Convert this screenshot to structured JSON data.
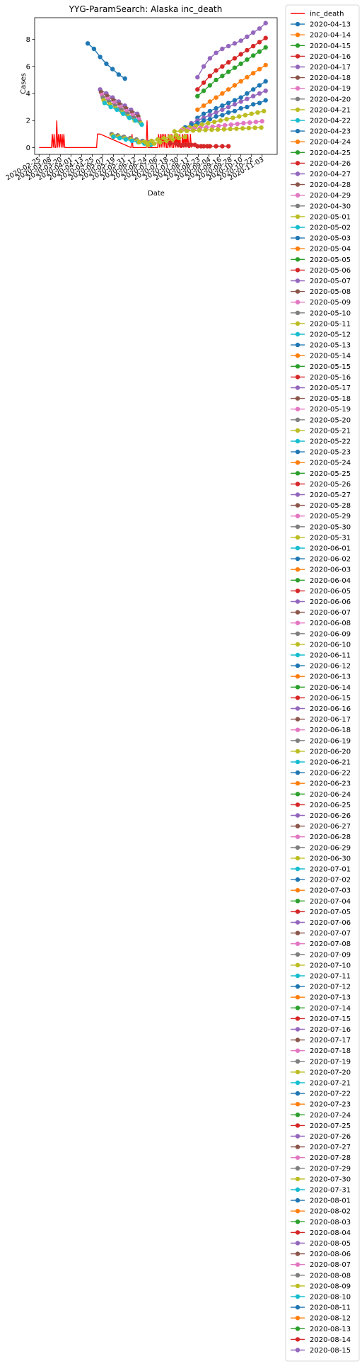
{
  "chart_data": {
    "type": "line",
    "title": "YYG-ParamSearch: Alaska inc_death",
    "xlabel": "Date",
    "ylabel": "Cases",
    "xlim": [
      "2020-02-20",
      "2020-11-20"
    ],
    "ylim": [
      -0.5,
      9.6
    ],
    "y_ticks": [
      0,
      2,
      4,
      6,
      8
    ],
    "x_ticks": [
      "2020-02-25",
      "2020-03-08",
      "2020-03-20",
      "2020-04-01",
      "2020-04-13",
      "2020-04-25",
      "2020-05-07",
      "2020-05-19",
      "2020-05-31",
      "2020-06-12",
      "2020-06-24",
      "2020-07-06",
      "2020-07-18",
      "2020-07-30",
      "2020-08-11",
      "2020-08-23",
      "2020-09-04",
      "2020-09-16",
      "2020-09-28",
      "2020-10-10",
      "2020-10-22",
      "2020-11-03"
    ],
    "grid": false,
    "legend": "outside-right",
    "observed": {
      "name": "inc_death",
      "color": "#ff0000",
      "x": [
        "2020-02-25",
        "2020-03-10",
        "2020-03-11",
        "2020-03-12",
        "2020-03-13",
        "2020-03-14",
        "2020-03-15",
        "2020-03-16",
        "2020-03-17",
        "2020-03-18",
        "2020-03-19",
        "2020-03-20",
        "2020-03-21",
        "2020-03-22",
        "2020-03-23",
        "2020-03-24",
        "2020-03-25",
        "2020-03-26",
        "2020-03-27",
        "2020-03-28",
        "2020-03-29",
        "2020-03-30",
        "2020-03-31",
        "2020-04-01",
        "2020-04-02",
        "2020-04-03",
        "2020-04-04",
        "2020-04-05",
        "2020-04-06",
        "2020-04-07",
        "2020-04-30",
        "2020-05-01",
        "2020-05-02",
        "2020-05-03",
        "2020-05-04",
        "2020-06-08",
        "2020-06-09",
        "2020-06-10",
        "2020-06-25",
        "2020-06-26",
        "2020-06-27",
        "2020-06-28",
        "2020-07-08",
        "2020-07-09",
        "2020-07-10",
        "2020-07-11",
        "2020-07-12",
        "2020-07-13",
        "2020-07-14",
        "2020-07-15",
        "2020-07-16",
        "2020-07-17",
        "2020-07-18",
        "2020-07-19",
        "2020-07-20",
        "2020-07-21",
        "2020-07-22",
        "2020-07-23",
        "2020-07-24",
        "2020-07-25",
        "2020-07-26",
        "2020-07-27",
        "2020-07-28",
        "2020-07-29",
        "2020-07-30",
        "2020-07-31",
        "2020-08-01",
        "2020-08-02",
        "2020-08-03",
        "2020-08-04",
        "2020-08-05",
        "2020-08-06",
        "2020-08-07",
        "2020-08-08",
        "2020-08-09",
        "2020-08-10",
        "2020-08-11",
        "2020-08-12",
        "2020-08-13",
        "2020-08-14",
        "2020-08-15"
      ],
      "y": [
        0,
        0,
        1,
        0,
        1,
        0,
        0,
        2,
        0,
        1,
        0,
        1,
        0,
        1,
        0,
        1,
        0,
        0,
        0,
        0,
        0,
        0,
        0,
        0,
        0,
        0,
        0,
        0,
        0,
        0,
        0,
        1,
        1,
        1,
        1,
        0,
        1,
        0,
        0,
        2,
        0,
        0,
        0,
        1,
        0,
        1,
        0,
        1,
        0,
        1,
        0,
        1,
        0,
        0,
        1,
        0,
        1,
        0,
        1,
        0,
        0,
        1,
        0,
        1,
        0,
        1,
        0,
        1,
        0,
        0,
        1,
        0,
        1,
        0,
        1,
        0,
        1,
        0,
        0,
        1,
        0
      ]
    },
    "series_names": [
      "2020-04-13",
      "2020-04-14",
      "2020-04-15",
      "2020-04-16",
      "2020-04-17",
      "2020-04-18",
      "2020-04-19",
      "2020-04-20",
      "2020-04-21",
      "2020-04-22",
      "2020-04-23",
      "2020-04-24",
      "2020-04-25",
      "2020-04-26",
      "2020-04-27",
      "2020-04-28",
      "2020-04-29",
      "2020-04-30",
      "2020-05-01",
      "2020-05-02",
      "2020-05-03",
      "2020-05-04",
      "2020-05-05",
      "2020-05-06",
      "2020-05-07",
      "2020-05-08",
      "2020-05-09",
      "2020-05-10",
      "2020-05-11",
      "2020-05-12",
      "2020-05-13",
      "2020-05-14",
      "2020-05-15",
      "2020-05-16",
      "2020-05-17",
      "2020-05-18",
      "2020-05-19",
      "2020-05-20",
      "2020-05-21",
      "2020-05-22",
      "2020-05-23",
      "2020-05-24",
      "2020-05-25",
      "2020-05-26",
      "2020-05-27",
      "2020-05-28",
      "2020-05-29",
      "2020-05-30",
      "2020-05-31",
      "2020-06-01",
      "2020-06-02",
      "2020-06-03",
      "2020-06-04",
      "2020-06-05",
      "2020-06-06",
      "2020-06-07",
      "2020-06-08",
      "2020-06-09",
      "2020-06-10",
      "2020-06-11",
      "2020-06-12",
      "2020-06-13",
      "2020-06-14",
      "2020-06-15",
      "2020-06-16",
      "2020-06-17",
      "2020-06-18",
      "2020-06-19",
      "2020-06-20",
      "2020-06-21",
      "2020-06-22",
      "2020-06-23",
      "2020-06-24",
      "2020-06-25",
      "2020-06-26",
      "2020-06-27",
      "2020-06-28",
      "2020-06-29",
      "2020-06-30",
      "2020-07-01",
      "2020-07-02",
      "2020-07-03",
      "2020-07-04",
      "2020-07-05",
      "2020-07-06",
      "2020-07-07",
      "2020-07-08",
      "2020-07-09",
      "2020-07-10",
      "2020-07-11",
      "2020-07-12",
      "2020-07-13",
      "2020-07-14",
      "2020-07-15",
      "2020-07-16",
      "2020-07-17",
      "2020-07-18",
      "2020-07-19",
      "2020-07-20",
      "2020-07-21",
      "2020-07-22",
      "2020-07-23",
      "2020-07-24",
      "2020-07-25",
      "2020-07-26",
      "2020-07-27",
      "2020-07-28",
      "2020-07-29",
      "2020-07-30",
      "2020-07-31",
      "2020-08-01",
      "2020-08-02",
      "2020-08-03",
      "2020-08-04",
      "2020-08-05",
      "2020-08-06",
      "2020-08-07",
      "2020-08-08",
      "2020-08-09",
      "2020-08-10",
      "2020-08-11",
      "2020-08-12",
      "2020-08-13",
      "2020-08-14",
      "2020-08-15"
    ],
    "series_colors": [
      "#1f77b4",
      "#ff7f0e",
      "#2ca02c",
      "#d62728",
      "#9467bd",
      "#8c564b",
      "#e377c2",
      "#7f7f7f",
      "#bcbd22",
      "#17becf"
    ],
    "series": [
      {
        "name": "2020-04-13",
        "x": [
          "2020-04-20",
          "2020-04-27",
          "2020-05-04",
          "2020-05-11",
          "2020-05-18",
          "2020-05-25",
          "2020-06-01"
        ],
        "y": [
          7.7,
          7.3,
          6.7,
          6.2,
          5.8,
          5.4,
          5.1
        ]
      },
      {
        "name": "2020-04-27",
        "x": [
          "2020-05-04",
          "2020-05-11",
          "2020-05-18",
          "2020-05-25",
          "2020-06-01",
          "2020-06-08",
          "2020-06-15"
        ],
        "y": [
          4.3,
          4.0,
          3.7,
          3.4,
          3.1,
          2.8,
          2.5
        ]
      },
      {
        "name": "2020-04-28",
        "x": [
          "2020-05-05",
          "2020-05-12",
          "2020-05-19",
          "2020-05-26",
          "2020-06-02",
          "2020-06-09",
          "2020-06-16"
        ],
        "y": [
          4.1,
          3.8,
          3.5,
          3.2,
          2.9,
          2.6,
          2.3
        ]
      },
      {
        "name": "2020-04-29",
        "x": [
          "2020-05-06",
          "2020-05-13",
          "2020-05-20",
          "2020-05-27",
          "2020-06-03",
          "2020-06-10",
          "2020-06-17"
        ],
        "y": [
          3.9,
          3.6,
          3.3,
          3.0,
          2.7,
          2.4,
          2.1
        ]
      },
      {
        "name": "2020-04-30",
        "x": [
          "2020-05-07",
          "2020-05-14",
          "2020-05-21",
          "2020-05-28",
          "2020-06-04",
          "2020-06-11",
          "2020-06-18"
        ],
        "y": [
          3.7,
          3.4,
          3.1,
          2.8,
          2.5,
          2.2,
          1.9
        ]
      },
      {
        "name": "2020-05-01",
        "x": [
          "2020-05-08",
          "2020-05-15",
          "2020-05-22",
          "2020-05-29",
          "2020-06-05",
          "2020-06-12",
          "2020-06-19"
        ],
        "y": [
          3.5,
          3.2,
          2.9,
          2.6,
          2.3,
          2.0,
          1.8
        ]
      },
      {
        "name": "2020-05-02",
        "x": [
          "2020-05-09",
          "2020-05-16",
          "2020-05-23",
          "2020-05-30",
          "2020-06-06",
          "2020-06-13",
          "2020-06-20"
        ],
        "y": [
          3.3,
          3.0,
          2.8,
          2.5,
          2.2,
          2.0,
          1.7
        ]
      },
      {
        "name": "2020-05-10",
        "x": [
          "2020-05-17",
          "2020-05-24",
          "2020-05-31",
          "2020-06-07",
          "2020-06-14",
          "2020-06-21",
          "2020-06-28"
        ],
        "y": [
          1.0,
          0.9,
          0.8,
          0.7,
          0.6,
          0.5,
          0.4
        ]
      },
      {
        "name": "2020-05-11",
        "x": [
          "2020-05-18",
          "2020-05-25",
          "2020-06-01",
          "2020-06-08",
          "2020-06-15",
          "2020-06-22",
          "2020-06-29"
        ],
        "y": [
          0.9,
          0.8,
          0.7,
          0.6,
          0.5,
          0.4,
          0.3
        ]
      },
      {
        "name": "2020-05-12",
        "x": [
          "2020-05-19",
          "2020-05-26",
          "2020-06-02",
          "2020-06-09",
          "2020-06-16",
          "2020-06-23",
          "2020-06-30"
        ],
        "y": [
          0.8,
          0.7,
          0.6,
          0.5,
          0.4,
          0.3,
          0.2
        ]
      },
      {
        "name": "2020-06-10",
        "x": [
          "2020-06-17",
          "2020-06-24",
          "2020-07-01",
          "2020-07-08",
          "2020-07-15",
          "2020-07-22",
          "2020-07-29"
        ],
        "y": [
          0.4,
          0.4,
          0.5,
          0.6,
          0.7,
          0.8,
          0.9
        ]
      },
      {
        "name": "2020-06-20",
        "x": [
          "2020-06-27",
          "2020-07-04",
          "2020-07-11",
          "2020-07-18",
          "2020-07-25",
          "2020-08-01",
          "2020-08-08"
        ],
        "y": [
          0.2,
          0.3,
          0.4,
          0.5,
          0.6,
          0.7,
          0.8
        ]
      },
      {
        "name": "2020-07-15",
        "x": [
          "2020-07-22",
          "2020-07-29",
          "2020-08-05",
          "2020-08-12",
          "2020-08-19",
          "2020-08-26",
          "2020-09-02"
        ],
        "y": [
          0.3,
          0.3,
          0.2,
          0.2,
          0.2,
          0.1,
          0.1
        ]
      },
      {
        "name": "2020-07-25",
        "x": [
          "2020-08-01",
          "2020-08-08",
          "2020-08-15",
          "2020-08-22",
          "2020-08-29",
          "2020-09-05",
          "2020-09-12",
          "2020-09-19",
          "2020-09-26"
        ],
        "y": [
          0.2,
          0.2,
          0.2,
          0.1,
          0.1,
          0.1,
          0.1,
          0.1,
          0.1
        ]
      },
      {
        "name": "2020-08-15",
        "x": [
          "2020-08-22",
          "2020-08-29",
          "2020-09-05",
          "2020-09-12",
          "2020-09-19",
          "2020-09-26",
          "2020-10-03",
          "2020-10-10",
          "2020-10-17",
          "2020-10-24",
          "2020-10-31",
          "2020-11-07"
        ],
        "y": [
          5.2,
          6.0,
          6.6,
          7.0,
          7.3,
          7.5,
          7.7,
          7.9,
          8.2,
          8.5,
          8.8,
          9.2
        ]
      },
      {
        "name": "2020-08-14",
        "x": [
          "2020-08-22",
          "2020-08-29",
          "2020-09-05",
          "2020-09-12",
          "2020-09-19",
          "2020-09-26",
          "2020-10-03",
          "2020-10-10",
          "2020-10-17",
          "2020-10-24",
          "2020-10-31",
          "2020-11-07"
        ],
        "y": [
          4.3,
          4.8,
          5.3,
          5.7,
          6.0,
          6.3,
          6.6,
          6.9,
          7.2,
          7.5,
          7.8,
          8.1
        ]
      },
      {
        "name": "2020-08-13",
        "x": [
          "2020-08-22",
          "2020-08-29",
          "2020-09-05",
          "2020-09-12",
          "2020-09-19",
          "2020-09-26",
          "2020-10-03",
          "2020-10-10",
          "2020-10-17",
          "2020-10-24",
          "2020-10-31",
          "2020-11-07"
        ],
        "y": [
          3.8,
          4.2,
          4.6,
          5.0,
          5.3,
          5.6,
          5.9,
          6.2,
          6.5,
          6.8,
          7.1,
          7.4
        ]
      },
      {
        "name": "2020-08-12",
        "x": [
          "2020-08-22",
          "2020-08-29",
          "2020-09-05",
          "2020-09-12",
          "2020-09-19",
          "2020-09-26",
          "2020-10-03",
          "2020-10-10",
          "2020-10-17",
          "2020-10-24",
          "2020-10-31",
          "2020-11-07"
        ],
        "y": [
          2.8,
          3.1,
          3.4,
          3.7,
          4.0,
          4.3,
          4.6,
          4.9,
          5.2,
          5.5,
          5.8,
          6.1
        ]
      },
      {
        "name": "2020-08-11",
        "x": [
          "2020-08-22",
          "2020-08-29",
          "2020-09-05",
          "2020-09-12",
          "2020-09-19",
          "2020-09-26",
          "2020-10-03",
          "2020-10-10",
          "2020-10-17",
          "2020-10-24",
          "2020-10-31",
          "2020-11-07"
        ],
        "y": [
          2.2,
          2.5,
          2.7,
          2.9,
          3.1,
          3.3,
          3.5,
          3.7,
          4.0,
          4.3,
          4.6,
          4.9
        ]
      },
      {
        "name": "2020-08-05",
        "x": [
          "2020-08-15",
          "2020-08-22",
          "2020-08-29",
          "2020-09-05",
          "2020-09-12",
          "2020-09-19",
          "2020-09-26",
          "2020-10-03",
          "2020-10-10",
          "2020-10-17",
          "2020-10-24",
          "2020-10-31",
          "2020-11-07"
        ],
        "y": [
          1.8,
          2.0,
          2.2,
          2.4,
          2.6,
          2.8,
          3.0,
          3.2,
          3.4,
          3.6,
          3.8,
          4.0,
          4.2
        ]
      },
      {
        "name": "2020-08-01",
        "x": [
          "2020-08-08",
          "2020-08-15",
          "2020-08-22",
          "2020-08-29",
          "2020-09-05",
          "2020-09-12",
          "2020-09-19",
          "2020-09-26",
          "2020-10-03",
          "2020-10-10",
          "2020-10-17",
          "2020-10-24",
          "2020-10-31",
          "2020-11-07"
        ],
        "y": [
          1.5,
          1.7,
          1.8,
          2.0,
          2.1,
          2.3,
          2.4,
          2.6,
          2.7,
          2.9,
          3.0,
          3.2,
          3.3,
          3.5
        ]
      },
      {
        "name": "2020-07-30",
        "x": [
          "2020-08-06",
          "2020-08-13",
          "2020-08-20",
          "2020-08-27",
          "2020-09-03",
          "2020-09-10",
          "2020-09-17",
          "2020-09-24",
          "2020-10-01",
          "2020-10-08",
          "2020-10-15",
          "2020-10-22",
          "2020-10-29",
          "2020-11-05"
        ],
        "y": [
          1.4,
          1.5,
          1.6,
          1.7,
          1.8,
          1.9,
          2.0,
          2.1,
          2.2,
          2.3,
          2.4,
          2.5,
          2.6,
          2.7
        ]
      },
      {
        "name": "2020-07-28",
        "x": [
          "2020-08-04",
          "2020-08-11",
          "2020-08-18",
          "2020-08-25",
          "2020-09-01",
          "2020-09-08",
          "2020-09-15",
          "2020-09-22",
          "2020-09-29",
          "2020-10-06",
          "2020-10-13",
          "2020-10-20",
          "2020-10-27",
          "2020-11-03"
        ],
        "y": [
          1.3,
          1.35,
          1.4,
          1.45,
          1.5,
          1.55,
          1.6,
          1.65,
          1.7,
          1.75,
          1.8,
          1.85,
          1.9,
          1.95
        ]
      },
      {
        "name": "2020-07-20",
        "x": [
          "2020-07-27",
          "2020-08-03",
          "2020-08-10",
          "2020-08-17",
          "2020-08-24",
          "2020-08-31",
          "2020-09-07",
          "2020-09-14",
          "2020-09-21",
          "2020-09-28",
          "2020-10-05",
          "2020-10-12",
          "2020-10-19",
          "2020-10-26",
          "2020-11-02"
        ],
        "y": [
          1.2,
          1.22,
          1.24,
          1.26,
          1.28,
          1.3,
          1.32,
          1.34,
          1.36,
          1.38,
          1.4,
          1.42,
          1.44,
          1.46,
          1.48
        ]
      }
    ]
  }
}
